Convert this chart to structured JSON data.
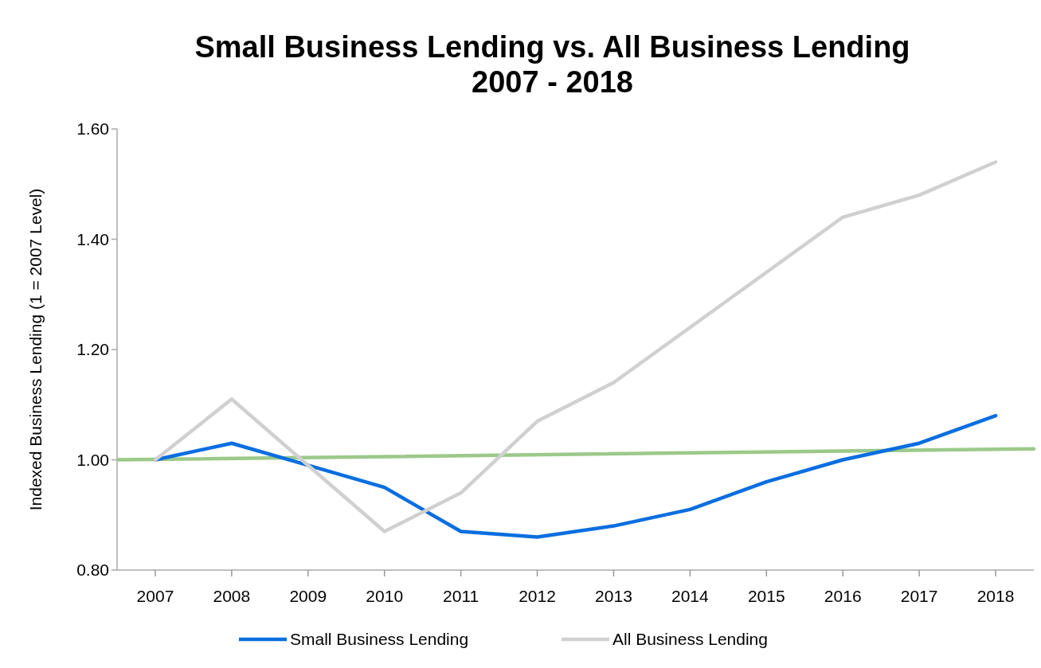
{
  "chart_data": {
    "type": "line",
    "title": "Small Business Lending vs. All Business Lending\n2007 - 2018",
    "ylabel": "Indexed Business Lending (1 = 2007 Level)",
    "x": [
      2007,
      2008,
      2009,
      2010,
      2011,
      2012,
      2013,
      2014,
      2015,
      2016,
      2017,
      2018
    ],
    "xlim": [
      2006.5,
      2018.5
    ],
    "xticks": [
      2007,
      2008,
      2009,
      2010,
      2011,
      2012,
      2013,
      2014,
      2015,
      2016,
      2017,
      2018
    ],
    "ylim": [
      0.8,
      1.6
    ],
    "yticks": [
      {
        "value": 0.8,
        "label": "0.80"
      },
      {
        "value": 1.0,
        "label": "1.00"
      },
      {
        "value": 1.2,
        "label": "1.20"
      },
      {
        "value": 1.4,
        "label": "1.40"
      },
      {
        "value": 1.6,
        "label": "1.60"
      }
    ],
    "series": [
      {
        "type": "line",
        "color": "#9cc98a",
        "x": [
          2006.5,
          2018.5
        ],
        "values": [
          1.0,
          1.02
        ]
      },
      {
        "name": "Small Business Lending",
        "color": "#0a6ee0",
        "values": [
          1.0,
          1.03,
          0.99,
          0.95,
          0.87,
          0.86,
          0.88,
          0.91,
          0.96,
          1.0,
          1.03,
          1.08
        ]
      },
      {
        "name": "All Business Lending",
        "color": "#d0d0d0",
        "values": [
          1.0,
          1.11,
          0.99,
          0.87,
          0.94,
          1.07,
          1.14,
          1.24,
          1.34,
          1.44,
          1.48,
          1.54
        ]
      }
    ],
    "grid": false,
    "legend": "bottom",
    "marker": "none",
    "line_style": "solid"
  }
}
